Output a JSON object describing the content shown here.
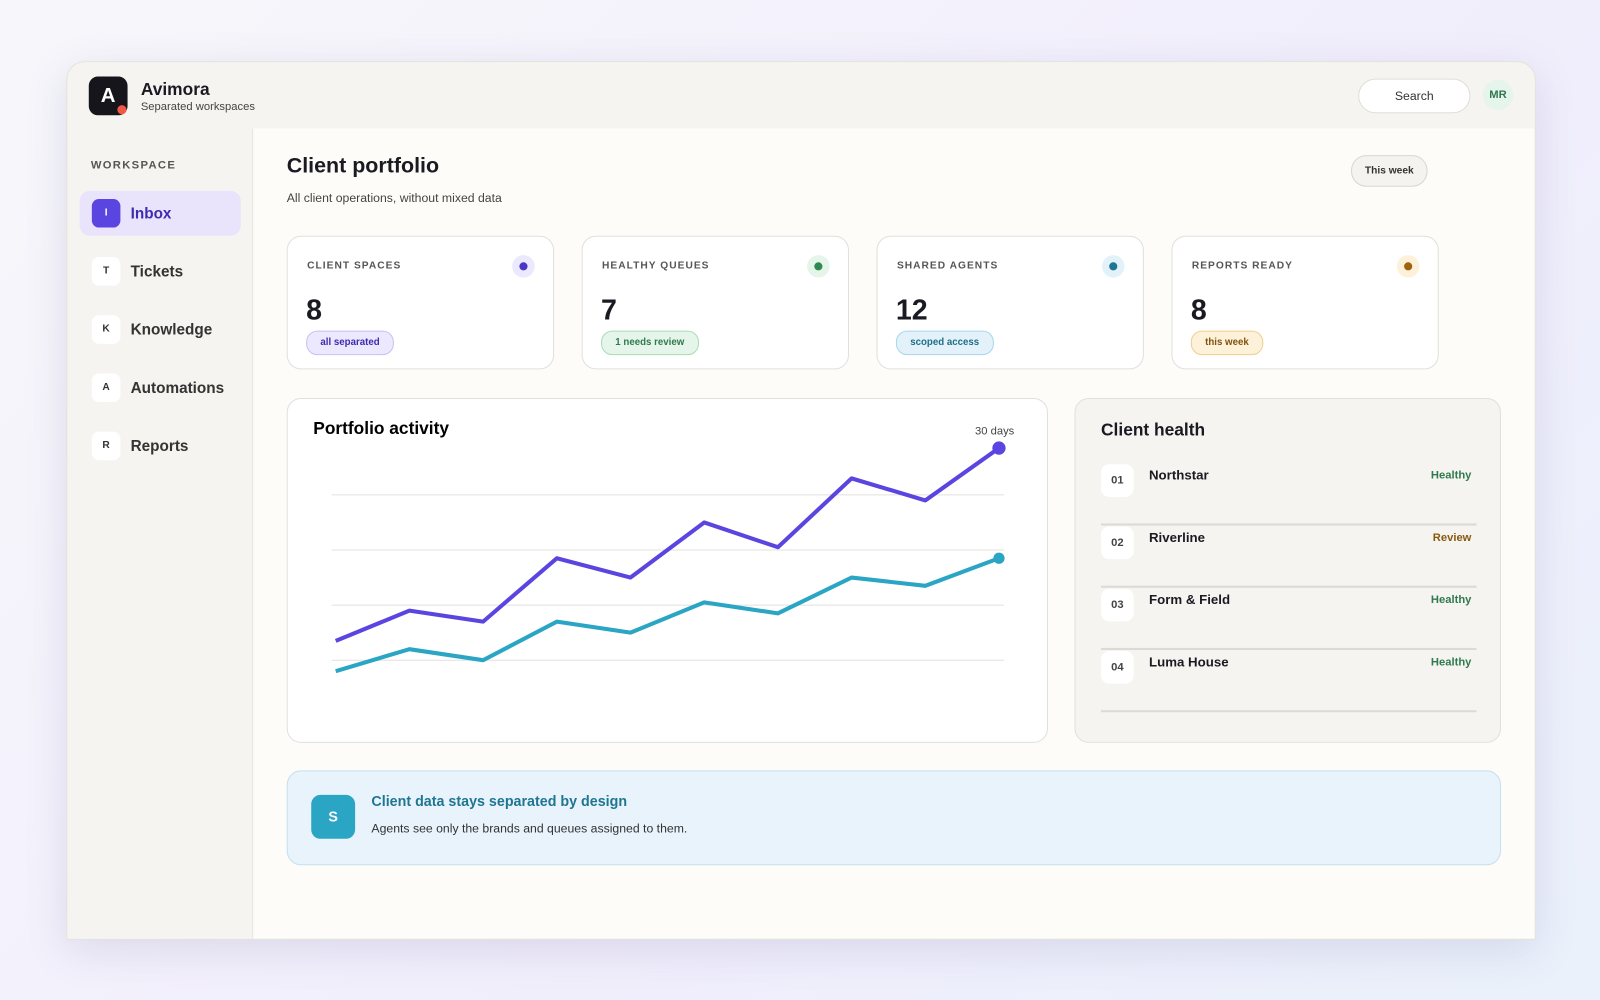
{
  "app": {
    "logo_letter": "A",
    "name": "Avimora",
    "tagline": "Separated workspaces",
    "search": "Search",
    "avatar": "MR"
  },
  "sidebar": {
    "section": "WORKSPACE",
    "items": [
      {
        "icon": "I",
        "label": "Inbox"
      },
      {
        "icon": "T",
        "label": "Tickets"
      },
      {
        "icon": "K",
        "label": "Knowledge"
      },
      {
        "icon": "A",
        "label": "Automations"
      },
      {
        "icon": "R",
        "label": "Reports"
      }
    ]
  },
  "header": {
    "title": "Client portfolio",
    "subtitle": "All client operations, without mixed data",
    "range": "This week"
  },
  "stats": [
    {
      "label": "CLIENT SPACES",
      "value": 8,
      "badge": "all separated"
    },
    {
      "label": "HEALTHY QUEUES",
      "value": 7,
      "badge": "1 needs review"
    },
    {
      "label": "SHARED AGENTS",
      "value": 12,
      "badge": "scoped access"
    },
    {
      "label": "REPORTS READY",
      "value": 8,
      "badge": "this week"
    }
  ],
  "chart_data": {
    "type": "line",
    "title": "Portfolio activity",
    "subtitle": "30 days",
    "categories": [
      null,
      null,
      null,
      null,
      null,
      null,
      null,
      null,
      null,
      null
    ],
    "series": [
      {
        "color": "#5b45e0",
        "values": [
          27,
          38,
          34,
          57,
          50,
          70,
          61,
          86,
          78,
          97
        ]
      },
      {
        "color": "#2ba5c4",
        "values": [
          16,
          24,
          20,
          34,
          30,
          41,
          37,
          50,
          47,
          57
        ]
      }
    ],
    "ylim": [
      0,
      100
    ]
  },
  "health": {
    "title": "Client health",
    "rows": [
      {
        "index": "01",
        "name": "Northstar",
        "status": "Healthy"
      },
      {
        "index": "02",
        "name": "Riverline",
        "status": "Review"
      },
      {
        "index": "03",
        "name": "Form & Field",
        "status": "Healthy"
      },
      {
        "index": "04",
        "name": "Luma House",
        "status": "Healthy"
      }
    ]
  },
  "notice": {
    "icon": "S",
    "title": "Client data stays separated by design",
    "text": "Agents see only the brands and queues assigned to them."
  }
}
